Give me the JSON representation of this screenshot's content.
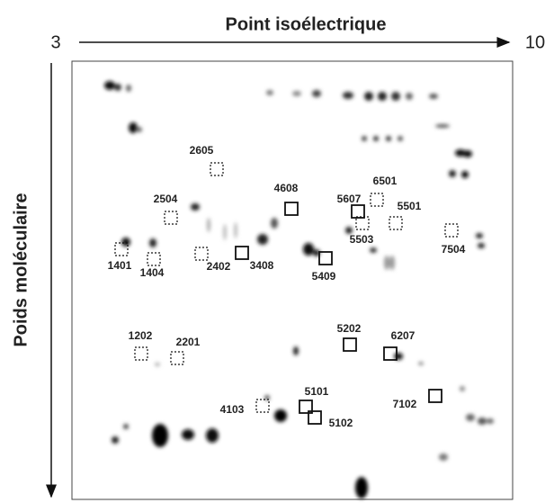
{
  "header": {
    "x_axis_label": "Point isoélectrique",
    "x_start": "3",
    "x_end": "10",
    "y_axis_label": "Poids moléculaire"
  },
  "spots": [
    {
      "label": "2605",
      "style": "dashed"
    },
    {
      "label": "2504",
      "style": "dashed"
    },
    {
      "label": "4608",
      "style": "solid"
    },
    {
      "label": "5607",
      "style": "solid"
    },
    {
      "label": "6501",
      "style": "dashed"
    },
    {
      "label": "5501",
      "style": "dashed"
    },
    {
      "label": "5503",
      "style": "dashed"
    },
    {
      "label": "7504",
      "style": "dashed"
    },
    {
      "label": "1401",
      "style": "dashed"
    },
    {
      "label": "1404",
      "style": "dashed"
    },
    {
      "label": "2402",
      "style": "dashed"
    },
    {
      "label": "3408",
      "style": "solid"
    },
    {
      "label": "5409",
      "style": "solid"
    },
    {
      "label": "5202",
      "style": "solid"
    },
    {
      "label": "6207",
      "style": "solid"
    },
    {
      "label": "1202",
      "style": "dashed"
    },
    {
      "label": "2201",
      "style": "dashed"
    },
    {
      "label": "4103",
      "style": "dashed"
    },
    {
      "label": "5101",
      "style": "solid"
    },
    {
      "label": "5102",
      "style": "solid"
    },
    {
      "label": "7102",
      "style": "solid"
    }
  ]
}
